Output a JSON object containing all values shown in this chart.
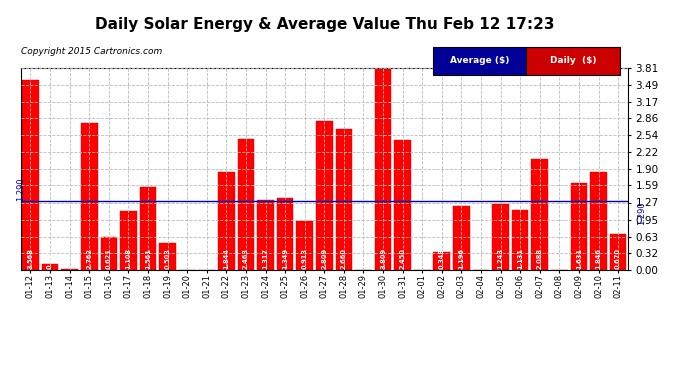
{
  "title": "Daily Solar Energy & Average Value Thu Feb 12 17:23",
  "copyright": "Copyright 2015 Cartronics.com",
  "categories": [
    "01-12",
    "01-13",
    "01-14",
    "01-15",
    "01-16",
    "01-17",
    "01-18",
    "01-19",
    "01-20",
    "01-21",
    "01-22",
    "01-23",
    "01-24",
    "01-25",
    "01-26",
    "01-27",
    "01-28",
    "01-29",
    "01-30",
    "01-31",
    "02-01",
    "02-02",
    "02-03",
    "02-04",
    "02-05",
    "02-06",
    "02-07",
    "02-08",
    "02-09",
    "02-10",
    "02-11"
  ],
  "values": [
    3.568,
    0.107,
    0.024,
    2.762,
    0.621,
    1.108,
    1.561,
    0.503,
    0.004,
    0.0,
    1.844,
    2.463,
    1.317,
    1.349,
    0.913,
    2.809,
    2.66,
    0.0,
    3.809,
    2.45,
    0.0,
    0.348,
    1.196,
    0.0,
    1.243,
    1.131,
    2.088,
    0.0,
    1.631,
    1.846,
    0.67
  ],
  "average_value": 1.29,
  "bar_color": "#ff0000",
  "average_line_color": "#0000bb",
  "background_color": "#ffffff",
  "plot_bg_color": "#ffffff",
  "grid_color": "#bbbbbb",
  "ylim": [
    0.0,
    3.81
  ],
  "yticks": [
    0.0,
    0.32,
    0.63,
    0.95,
    1.27,
    1.59,
    1.9,
    2.22,
    2.54,
    2.86,
    3.17,
    3.49,
    3.81
  ],
  "legend_avg_color": "#000099",
  "legend_daily_color": "#cc0000",
  "avg_label": "Average ($)",
  "daily_label": "Daily  ($)"
}
